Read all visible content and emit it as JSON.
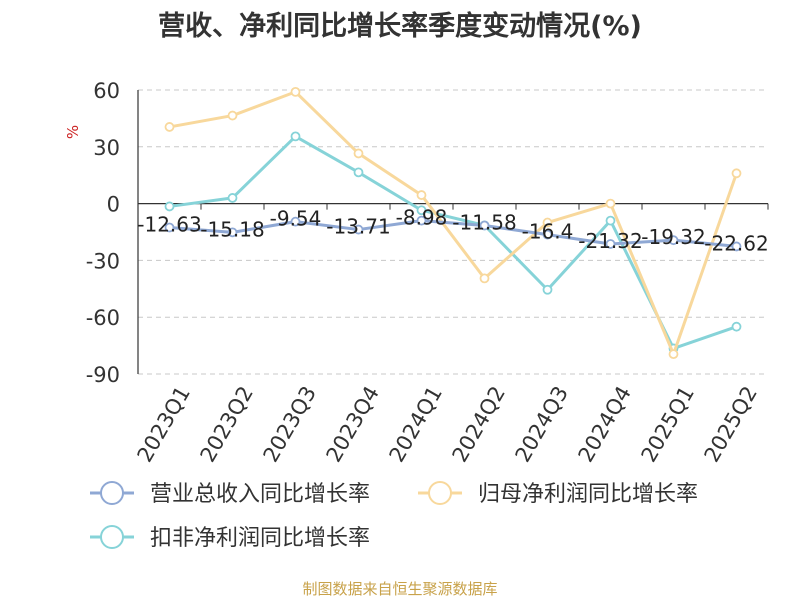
{
  "title": "营收、净利同比增长率季度变动情况(%)",
  "source": "制图数据来自恒生聚源数据库",
  "chart_data": {
    "type": "line",
    "title": "营收、净利同比增长率季度变动情况(%)",
    "ylabel": "%",
    "xlabel": "",
    "ylim": [
      -90,
      60
    ],
    "yticks": [
      60,
      30,
      0,
      -30,
      -60,
      -90
    ],
    "grid": true,
    "legend_position": "bottom",
    "categories": [
      "2023Q1",
      "2023Q2",
      "2023Q3",
      "2023Q4",
      "2024Q1",
      "2024Q2",
      "2024Q3",
      "2024Q4",
      "2025Q1",
      "2025Q2"
    ],
    "series": [
      {
        "name": "营业总收入同比增长率",
        "color": "#8fa8d4",
        "values": [
          -12.63,
          -15.18,
          -9.54,
          -13.71,
          -8.98,
          -11.58,
          -16.4,
          -21.32,
          -19.32,
          -22.62
        ],
        "labels": [
          "-12.63",
          "-15.18",
          "-9.54",
          "-13.71",
          "-8.98",
          "-11.58",
          "-16.4",
          "-21.32",
          "-19.32",
          "-22.62"
        ]
      },
      {
        "name": "归母净利润同比增长率",
        "color": "#f8d89c",
        "values": [
          40.5,
          46.5,
          59,
          26.5,
          4.5,
          -39.5,
          -10,
          0,
          -79.5,
          16
        ]
      },
      {
        "name": "扣非净利润同比增长率",
        "color": "#86d3d8",
        "values": [
          -1.5,
          3,
          35.5,
          16.5,
          -3.5,
          -11.5,
          -45.5,
          -9,
          -76.5,
          -65
        ]
      }
    ]
  }
}
